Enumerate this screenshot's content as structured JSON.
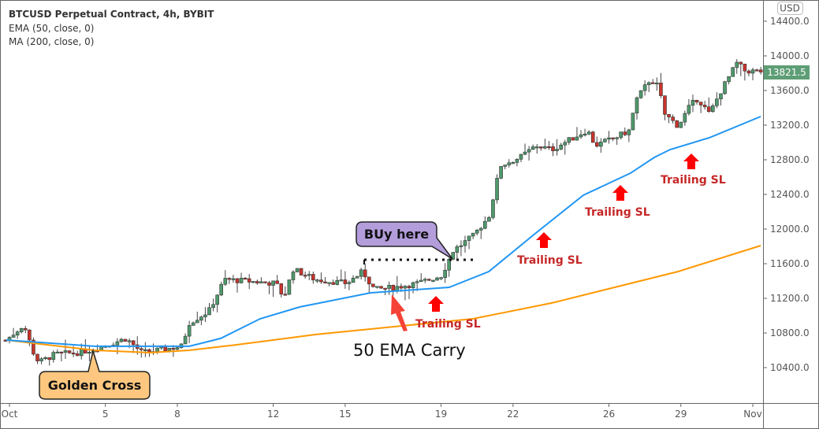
{
  "chart_data": {
    "type": "candlestick",
    "title": "BTCUSD Perpetual Contract, 4h, BYBIT",
    "indicators": [
      "EMA (50, close, 0)",
      "MA (200, close, 0)"
    ],
    "currency": "USD",
    "last_price": "13821.5",
    "ylim": [
      10000,
      14600
    ],
    "y_ticks": [
      "14400.0",
      "14000.0",
      "13600.0",
      "13200.0",
      "12800.0",
      "12400.0",
      "12000.0",
      "11600.0",
      "11200.0",
      "10800.0",
      "10400.0"
    ],
    "y_tick_values": [
      14400,
      14000,
      13600,
      13200,
      12800,
      12400,
      12000,
      11600,
      11200,
      10800,
      10400
    ],
    "x_ticks": [
      {
        "label": "Oct",
        "day": 0
      },
      {
        "label": "5",
        "day": 4
      },
      {
        "label": "8",
        "day": 7
      },
      {
        "label": "12",
        "day": 11
      },
      {
        "label": "15",
        "day": 14
      },
      {
        "label": "19",
        "day": 18
      },
      {
        "label": "22",
        "day": 21
      },
      {
        "label": "26",
        "day": 25
      },
      {
        "label": "29",
        "day": 28
      },
      {
        "label": "Nov",
        "day": 31
      }
    ],
    "xlim_days": [
      -0.15,
      31.45
    ],
    "close_path": [
      [
        -0.13,
        10718
      ],
      [
        0.43,
        10855
      ],
      [
        0.59,
        10900
      ],
      [
        1.08,
        10510
      ],
      [
        1.25,
        10464
      ],
      [
        1.91,
        10555
      ],
      [
        2.89,
        10573
      ],
      [
        3.55,
        10618
      ],
      [
        4.87,
        10736
      ],
      [
        5.52,
        10573
      ],
      [
        6.18,
        10600
      ],
      [
        7.17,
        10646
      ],
      [
        7.5,
        10918
      ],
      [
        8.32,
        11054
      ],
      [
        8.97,
        11418
      ],
      [
        11.11,
        11373
      ],
      [
        11.44,
        11209
      ],
      [
        11.83,
        11536
      ],
      [
        12.75,
        11418
      ],
      [
        14.07,
        11373
      ],
      [
        14.73,
        11509
      ],
      [
        15.22,
        11300
      ],
      [
        16.04,
        11327
      ],
      [
        17.03,
        11373
      ],
      [
        18.01,
        11464
      ],
      [
        18.51,
        11754
      ],
      [
        19.33,
        11918
      ],
      [
        19.99,
        12145
      ],
      [
        20.48,
        12736
      ],
      [
        21.3,
        12827
      ],
      [
        21.96,
        12964
      ],
      [
        22.62,
        12918
      ],
      [
        24.1,
        13145
      ],
      [
        24.43,
        12964
      ],
      [
        25.25,
        13055
      ],
      [
        25.9,
        13145
      ],
      [
        26.07,
        13464
      ],
      [
        26.73,
        13736
      ],
      [
        27.06,
        13646
      ],
      [
        27.32,
        13327
      ],
      [
        27.88,
        13191
      ],
      [
        28.37,
        13418
      ],
      [
        28.7,
        13509
      ],
      [
        29.19,
        13327
      ],
      [
        29.68,
        13600
      ],
      [
        30.34,
        13918
      ],
      [
        30.67,
        13827
      ],
      [
        31.33,
        13821
      ]
    ],
    "ema50": [
      [
        -0.13,
        10718
      ],
      [
        3.55,
        10646
      ],
      [
        7.5,
        10646
      ],
      [
        8.81,
        10737
      ],
      [
        10.45,
        10964
      ],
      [
        12.1,
        11100
      ],
      [
        15.06,
        11264
      ],
      [
        18.34,
        11327
      ],
      [
        19.99,
        11509
      ],
      [
        21.96,
        11955
      ],
      [
        23.93,
        12391
      ],
      [
        25.9,
        12646
      ],
      [
        26.89,
        12827
      ],
      [
        27.55,
        12918
      ],
      [
        29.19,
        13055
      ],
      [
        31.33,
        13300
      ]
    ],
    "ma200": [
      [
        -0.13,
        10718
      ],
      [
        3.55,
        10600
      ],
      [
        5.85,
        10573
      ],
      [
        7.5,
        10600
      ],
      [
        9.47,
        10664
      ],
      [
        12.75,
        10782
      ],
      [
        16.04,
        10873
      ],
      [
        19.33,
        10964
      ],
      [
        22.62,
        11146
      ],
      [
        25.9,
        11373
      ],
      [
        27.88,
        11509
      ],
      [
        31.33,
        11809
      ]
    ],
    "colors": {
      "up": "#4e9a6c",
      "down": "#c8342c",
      "ema": "#2196f3",
      "ma": "#ff9800",
      "price_tag": "#5e9e76"
    }
  },
  "annotations": {
    "golden_cross": "Golden Cross",
    "buy_here": "BUy here",
    "ema_carry": "50 EMA Carry",
    "trailing": [
      "Trailing SL",
      "Trailing SL",
      "Trailing SL",
      "Trailing SL"
    ]
  }
}
